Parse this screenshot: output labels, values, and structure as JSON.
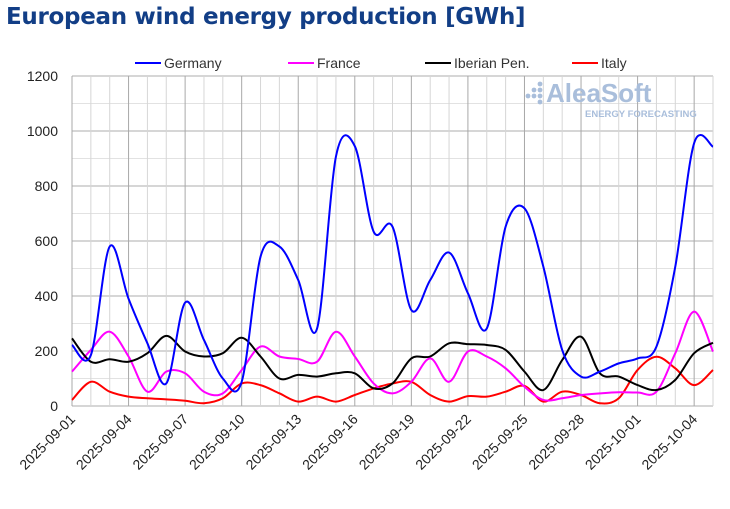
{
  "chart_data": {
    "type": "line",
    "title": "European wind energy production [GWh]",
    "xlabel": "",
    "ylabel": "",
    "ylim": [
      0,
      1200
    ],
    "yticks": [
      "0",
      "200",
      "400",
      "600",
      "800",
      "1000",
      "1200"
    ],
    "x": [
      "2025-09-01",
      "2025-09-02",
      "2025-09-03",
      "2025-09-04",
      "2025-09-05",
      "2025-09-06",
      "2025-09-07",
      "2025-09-08",
      "2025-09-09",
      "2025-09-10",
      "2025-09-11",
      "2025-09-12",
      "2025-09-13",
      "2025-09-14",
      "2025-09-15",
      "2025-09-16",
      "2025-09-17",
      "2025-09-18",
      "2025-09-19",
      "2025-09-20",
      "2025-09-21",
      "2025-09-22",
      "2025-09-23",
      "2025-09-24",
      "2025-09-25",
      "2025-09-26",
      "2025-09-27",
      "2025-09-28",
      "2025-09-29",
      "2025-09-30",
      "2025-10-01",
      "2025-10-02",
      "2025-10-03",
      "2025-10-04",
      "2025-10-05"
    ],
    "xtick_labels": [
      "2025-09-01",
      "2025-09-04",
      "2025-09-07",
      "2025-09-10",
      "2025-09-13",
      "2025-09-16",
      "2025-09-19",
      "2025-09-22",
      "2025-09-25",
      "2025-09-28",
      "2025-10-01",
      "2025-10-04"
    ],
    "grid": true,
    "legend_position": "top",
    "series": [
      {
        "name": "Germany",
        "color": "#0000ff",
        "values": [
          222,
          185,
          580,
          390,
          228,
          82,
          376,
          240,
          100,
          88,
          543,
          580,
          458,
          282,
          907,
          945,
          634,
          652,
          349,
          458,
          558,
          410,
          282,
          652,
          719,
          507,
          204,
          107,
          125,
          155,
          173,
          216,
          507,
          956,
          943
        ]
      },
      {
        "name": "France",
        "color": "#ff00ff",
        "values": [
          125,
          204,
          270,
          180,
          52,
          125,
          119,
          52,
          46,
          131,
          216,
          180,
          171,
          161,
          270,
          180,
          82,
          46,
          88,
          173,
          88,
          198,
          180,
          137,
          70,
          22,
          28,
          40,
          46,
          50,
          49,
          52,
          192,
          343,
          198
        ]
      },
      {
        "name": "Iberian Pen.",
        "color": "#000000",
        "values": [
          246,
          161,
          170,
          161,
          192,
          255,
          198,
          180,
          192,
          248,
          180,
          100,
          113,
          107,
          119,
          119,
          64,
          82,
          173,
          180,
          228,
          225,
          222,
          204,
          125,
          58,
          167,
          252,
          119,
          107,
          76,
          58,
          95,
          192,
          230
        ]
      },
      {
        "name": "Italy",
        "color": "#ff0000",
        "values": [
          22,
          88,
          52,
          34,
          28,
          24,
          19,
          10,
          28,
          82,
          76,
          46,
          16,
          34,
          16,
          40,
          64,
          82,
          88,
          40,
          16,
          36,
          34,
          52,
          73,
          16,
          52,
          40,
          10,
          28,
          131,
          179,
          137,
          76,
          131
        ]
      }
    ]
  },
  "watermark": {
    "brand": "AleaSoft",
    "tagline": "ENERGY FORECASTING"
  }
}
